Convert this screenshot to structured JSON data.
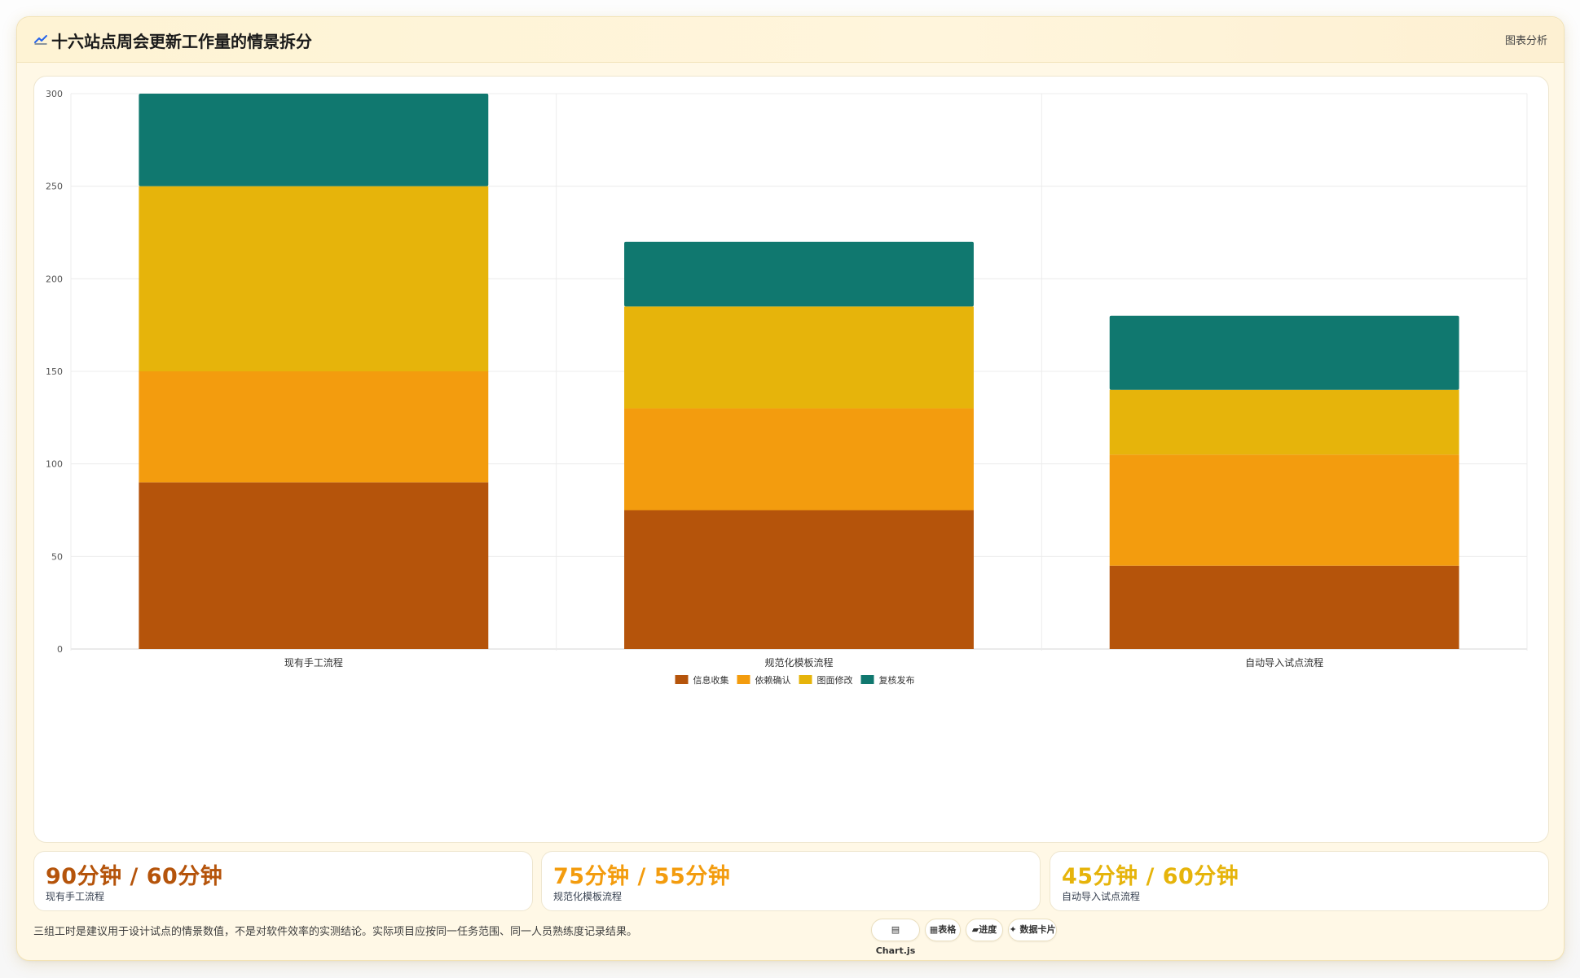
{
  "header": {
    "icon": "chart-wave-icon",
    "title": "十六站点周会更新工作量的情景拆分",
    "action_label": "图表分析"
  },
  "colors": {
    "brown": "#b5540b",
    "orange": "#f39c0e",
    "gold": "#e6b40b",
    "teal": "#10786f"
  },
  "chart_data": {
    "type": "bar",
    "stacked": true,
    "categories": [
      "现有手工流程",
      "规范化模板流程",
      "自动导入试点流程"
    ],
    "series": [
      {
        "name": "信息收集",
        "color": "#b5540b",
        "values": [
          90,
          75,
          45
        ]
      },
      {
        "name": "依赖确认",
        "color": "#f39c0e",
        "values": [
          60,
          55,
          60
        ]
      },
      {
        "name": "图面修改",
        "color": "#e6b40b",
        "values": [
          100,
          55,
          35
        ]
      },
      {
        "name": "复核发布",
        "color": "#10786f",
        "values": [
          50,
          35,
          40
        ]
      }
    ],
    "ylim": [
      0,
      300
    ],
    "yticks": [
      0,
      50,
      100,
      150,
      200,
      250,
      300
    ],
    "grid": true,
    "legend_position": "bottom"
  },
  "stats": [
    {
      "value": "90分钟 / 60分钟",
      "label": "现有手工流程",
      "color": "#b5540b"
    },
    {
      "value": "75分钟 / 55分钟",
      "label": "规范化模板流程",
      "color": "#f39c0e"
    },
    {
      "value": "45分钟 / 60分钟",
      "label": "自动导入试点流程",
      "color": "#e6b40b"
    }
  ],
  "footnote": "三组工时是建议用于设计试点的情景数值，不是对软件效率的实测结论。实际项目应按同一任务范围、同一人员熟练度记录结果。",
  "tags": [
    {
      "icon": "chart-icon",
      "label": "Chart.js"
    },
    {
      "icon": "table-icon",
      "label": "表格"
    },
    {
      "icon": "progress-icon",
      "label": "进度"
    },
    {
      "icon": "sparkle-icon",
      "label": "数据卡片"
    }
  ]
}
